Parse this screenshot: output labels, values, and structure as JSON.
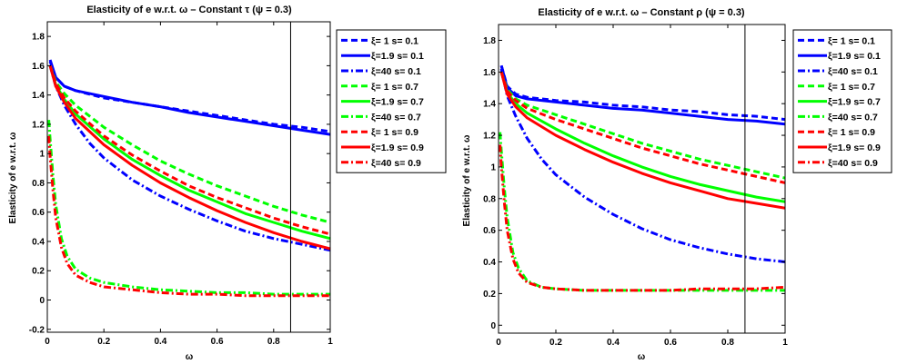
{
  "figure": {
    "colors": {
      "blue": "#0000ff",
      "green": "#00ff00",
      "red": "#ff0000",
      "black": "#000000"
    }
  },
  "chart_data": [
    {
      "type": "line",
      "title": "Elasticity of e w.r.t. ω – Constant τ (ψ = 0.3)",
      "xlabel": "ω",
      "ylabel": "Elasticity of e w.r.t. ω",
      "xlim": [
        0,
        1
      ],
      "ylim": [
        -0.22,
        1.9
      ],
      "xticks": [
        0,
        0.2,
        0.4,
        0.6,
        0.8,
        1
      ],
      "xtick_labels": [
        "0",
        "0.2",
        "0.4",
        "0.6",
        "0.8",
        "1"
      ],
      "yticks": [
        -0.2,
        0,
        0.2,
        0.4,
        0.6,
        0.8,
        1,
        1.2,
        1.4,
        1.6,
        1.8
      ],
      "ytick_labels": [
        "-0.2",
        "0",
        "0.2",
        "0.4",
        "0.6",
        "0.8",
        "1",
        "1.2",
        "1.4",
        "1.6",
        "1.8"
      ],
      "vline_x": 0.86,
      "grid": false,
      "legend_position": "outside-right",
      "series": [
        {
          "name": "ξ=  1 s= 0.1",
          "color": "#0000ff",
          "dash": "dashed",
          "x": [
            0.01,
            0.03,
            0.06,
            0.1,
            0.2,
            0.3,
            0.4,
            0.5,
            0.6,
            0.7,
            0.8,
            0.9,
            1.0
          ],
          "y": [
            1.63,
            1.52,
            1.46,
            1.43,
            1.38,
            1.35,
            1.32,
            1.29,
            1.26,
            1.23,
            1.2,
            1.18,
            1.15
          ]
        },
        {
          "name": "ξ=1.9 s= 0.1",
          "color": "#0000ff",
          "dash": "solid",
          "x": [
            0.01,
            0.03,
            0.06,
            0.1,
            0.2,
            0.3,
            0.4,
            0.5,
            0.6,
            0.7,
            0.8,
            0.9,
            1.0
          ],
          "y": [
            1.64,
            1.52,
            1.46,
            1.43,
            1.39,
            1.35,
            1.32,
            1.28,
            1.25,
            1.22,
            1.19,
            1.16,
            1.13
          ]
        },
        {
          "name": "ξ=40 s= 0.1",
          "color": "#0000ff",
          "dash": "dashdot",
          "x": [
            0.01,
            0.03,
            0.06,
            0.1,
            0.15,
            0.2,
            0.3,
            0.4,
            0.5,
            0.6,
            0.7,
            0.8,
            0.9,
            1.0
          ],
          "y": [
            1.6,
            1.46,
            1.33,
            1.2,
            1.07,
            0.97,
            0.82,
            0.71,
            0.62,
            0.54,
            0.47,
            0.42,
            0.38,
            0.34
          ]
        },
        {
          "name": "ξ=  1 s= 0.7",
          "color": "#00ff00",
          "dash": "dashed",
          "x": [
            0.01,
            0.03,
            0.06,
            0.1,
            0.2,
            0.3,
            0.4,
            0.5,
            0.6,
            0.7,
            0.8,
            0.9,
            1.0
          ],
          "y": [
            1.6,
            1.49,
            1.41,
            1.33,
            1.18,
            1.06,
            0.95,
            0.86,
            0.78,
            0.71,
            0.64,
            0.58,
            0.53
          ]
        },
        {
          "name": "ξ=1.9 s= 0.7",
          "color": "#00ff00",
          "dash": "solid",
          "x": [
            0.01,
            0.03,
            0.06,
            0.1,
            0.2,
            0.3,
            0.4,
            0.5,
            0.6,
            0.7,
            0.8,
            0.9,
            1.0
          ],
          "y": [
            1.6,
            1.47,
            1.37,
            1.27,
            1.1,
            0.96,
            0.85,
            0.75,
            0.67,
            0.59,
            0.53,
            0.47,
            0.42
          ]
        },
        {
          "name": "ξ=40 s= 0.7",
          "color": "#00ff00",
          "dash": "dashdot",
          "x": [
            0.005,
            0.01,
            0.02,
            0.03,
            0.05,
            0.07,
            0.1,
            0.15,
            0.2,
            0.3,
            0.4,
            0.5,
            0.6,
            0.7,
            0.8,
            0.9,
            1.0
          ],
          "y": [
            1.23,
            1.1,
            0.85,
            0.65,
            0.42,
            0.3,
            0.21,
            0.15,
            0.12,
            0.09,
            0.07,
            0.06,
            0.05,
            0.05,
            0.04,
            0.04,
            0.04
          ]
        },
        {
          "name": "ξ=  1 s= 0.9",
          "color": "#ff0000",
          "dash": "dashed",
          "x": [
            0.01,
            0.03,
            0.06,
            0.1,
            0.2,
            0.3,
            0.4,
            0.5,
            0.6,
            0.7,
            0.8,
            0.9,
            1.0
          ],
          "y": [
            1.6,
            1.48,
            1.38,
            1.29,
            1.12,
            0.99,
            0.88,
            0.78,
            0.7,
            0.63,
            0.56,
            0.5,
            0.45
          ]
        },
        {
          "name": "ξ=1.9 s= 0.9",
          "color": "#ff0000",
          "dash": "solid",
          "x": [
            0.01,
            0.03,
            0.06,
            0.1,
            0.2,
            0.3,
            0.4,
            0.5,
            0.6,
            0.7,
            0.8,
            0.9,
            1.0
          ],
          "y": [
            1.6,
            1.46,
            1.35,
            1.24,
            1.06,
            0.92,
            0.8,
            0.7,
            0.61,
            0.53,
            0.46,
            0.4,
            0.35
          ]
        },
        {
          "name": "ξ=40 s= 0.9",
          "color": "#ff0000",
          "dash": "dashdot",
          "x": [
            0.005,
            0.01,
            0.02,
            0.03,
            0.05,
            0.07,
            0.1,
            0.15,
            0.2,
            0.3,
            0.4,
            0.5,
            0.6,
            0.7,
            0.8,
            0.9,
            1.0
          ],
          "y": [
            1.12,
            0.98,
            0.75,
            0.56,
            0.36,
            0.25,
            0.17,
            0.12,
            0.09,
            0.07,
            0.05,
            0.04,
            0.04,
            0.03,
            0.03,
            0.03,
            0.03
          ]
        }
      ]
    },
    {
      "type": "line",
      "title": "Elasticity of e w.r.t. ω – Constant ρ (ψ = 0.3)",
      "xlabel": "ω",
      "ylabel": "Elasticity of e w.r.t. ω",
      "xlim": [
        0,
        1
      ],
      "ylim": [
        -0.05,
        1.9
      ],
      "xticks": [
        0,
        0.2,
        0.4,
        0.6,
        0.8,
        1
      ],
      "xtick_labels": [
        "0",
        "0.2",
        "0.4",
        "0.6",
        "0.8",
        "1"
      ],
      "yticks": [
        0,
        0.2,
        0.4,
        0.6,
        0.8,
        1,
        1.2,
        1.4,
        1.6,
        1.8
      ],
      "ytick_labels": [
        "0",
        "0.2",
        "0.4",
        "0.6",
        "0.8",
        "1",
        "1.2",
        "1.4",
        "1.6",
        "1.8"
      ],
      "vline_x": 0.86,
      "grid": false,
      "legend_position": "outside-right",
      "series": [
        {
          "name": "ξ=  1 s= 0.1",
          "color": "#0000ff",
          "dash": "dashed",
          "x": [
            0.01,
            0.03,
            0.06,
            0.1,
            0.2,
            0.3,
            0.4,
            0.5,
            0.6,
            0.7,
            0.8,
            0.9,
            1.0
          ],
          "y": [
            1.64,
            1.51,
            1.46,
            1.44,
            1.42,
            1.41,
            1.39,
            1.38,
            1.36,
            1.35,
            1.33,
            1.32,
            1.3
          ]
        },
        {
          "name": "ξ=1.9 s= 0.1",
          "color": "#0000ff",
          "dash": "solid",
          "x": [
            0.01,
            0.03,
            0.06,
            0.1,
            0.2,
            0.3,
            0.4,
            0.5,
            0.6,
            0.7,
            0.8,
            0.9,
            1.0
          ],
          "y": [
            1.64,
            1.5,
            1.45,
            1.43,
            1.41,
            1.39,
            1.37,
            1.36,
            1.34,
            1.32,
            1.3,
            1.29,
            1.27
          ]
        },
        {
          "name": "ξ=40 s= 0.1",
          "color": "#0000ff",
          "dash": "dashdot",
          "x": [
            0.01,
            0.03,
            0.06,
            0.1,
            0.15,
            0.2,
            0.3,
            0.4,
            0.5,
            0.6,
            0.7,
            0.8,
            0.9,
            1.0
          ],
          "y": [
            1.62,
            1.45,
            1.32,
            1.18,
            1.05,
            0.95,
            0.81,
            0.7,
            0.61,
            0.54,
            0.49,
            0.45,
            0.42,
            0.4
          ]
        },
        {
          "name": "ξ=  1 s= 0.7",
          "color": "#00ff00",
          "dash": "dashed",
          "x": [
            0.01,
            0.03,
            0.06,
            0.1,
            0.2,
            0.3,
            0.4,
            0.5,
            0.6,
            0.7,
            0.8,
            0.9,
            1.0
          ],
          "y": [
            1.6,
            1.49,
            1.43,
            1.39,
            1.33,
            1.27,
            1.21,
            1.15,
            1.1,
            1.05,
            1.01,
            0.97,
            0.93
          ]
        },
        {
          "name": "ξ=1.9 s= 0.7",
          "color": "#00ff00",
          "dash": "solid",
          "x": [
            0.01,
            0.03,
            0.06,
            0.1,
            0.2,
            0.3,
            0.4,
            0.5,
            0.6,
            0.7,
            0.8,
            0.9,
            1.0
          ],
          "y": [
            1.6,
            1.47,
            1.4,
            1.34,
            1.24,
            1.15,
            1.07,
            1.0,
            0.94,
            0.89,
            0.85,
            0.81,
            0.78
          ]
        },
        {
          "name": "ξ=40 s= 0.7",
          "color": "#00ff00",
          "dash": "dashdot",
          "x": [
            0.005,
            0.01,
            0.02,
            0.03,
            0.05,
            0.07,
            0.1,
            0.15,
            0.2,
            0.3,
            0.4,
            0.5,
            0.6,
            0.7,
            0.8,
            0.9,
            1.0
          ],
          "y": [
            1.22,
            1.1,
            0.87,
            0.68,
            0.46,
            0.36,
            0.28,
            0.24,
            0.23,
            0.22,
            0.22,
            0.22,
            0.22,
            0.22,
            0.22,
            0.22,
            0.22
          ]
        },
        {
          "name": "ξ=  1 s= 0.9",
          "color": "#ff0000",
          "dash": "dashed",
          "x": [
            0.01,
            0.03,
            0.06,
            0.1,
            0.2,
            0.3,
            0.4,
            0.5,
            0.6,
            0.7,
            0.8,
            0.9,
            1.0
          ],
          "y": [
            1.6,
            1.48,
            1.42,
            1.37,
            1.3,
            1.24,
            1.18,
            1.12,
            1.07,
            1.02,
            0.98,
            0.94,
            0.9
          ]
        },
        {
          "name": "ξ=1.9 s= 0.9",
          "color": "#ff0000",
          "dash": "solid",
          "x": [
            0.01,
            0.03,
            0.06,
            0.1,
            0.2,
            0.3,
            0.4,
            0.5,
            0.6,
            0.7,
            0.8,
            0.9,
            1.0
          ],
          "y": [
            1.6,
            1.46,
            1.38,
            1.31,
            1.2,
            1.11,
            1.03,
            0.96,
            0.9,
            0.85,
            0.8,
            0.77,
            0.74
          ]
        },
        {
          "name": "ξ=40 s= 0.9",
          "color": "#ff0000",
          "dash": "dashdot",
          "x": [
            0.005,
            0.01,
            0.02,
            0.03,
            0.05,
            0.07,
            0.1,
            0.15,
            0.2,
            0.3,
            0.4,
            0.5,
            0.6,
            0.7,
            0.8,
            0.9,
            1.0
          ],
          "y": [
            1.14,
            1.0,
            0.78,
            0.6,
            0.42,
            0.33,
            0.27,
            0.24,
            0.23,
            0.22,
            0.22,
            0.22,
            0.22,
            0.23,
            0.23,
            0.23,
            0.24
          ]
        }
      ]
    }
  ]
}
